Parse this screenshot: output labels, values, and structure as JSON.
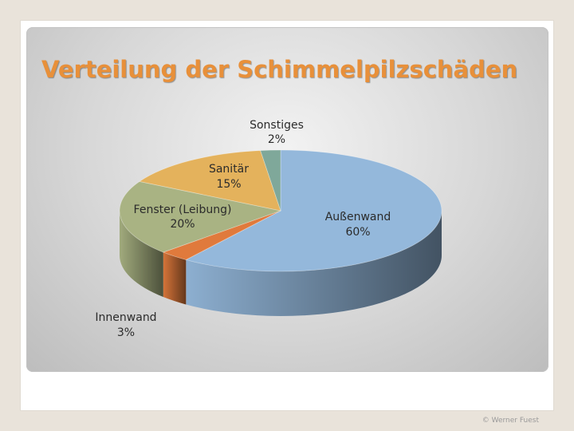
{
  "slide": {
    "title": "Verteilung der Schimmelpilzschäden",
    "copyright": "© Werner Fuest"
  },
  "chart_data": {
    "type": "pie",
    "style": "3d",
    "title": "Verteilung der Schimmelpilzschäden",
    "slices": [
      {
        "label": "Außenwand",
        "percent_label": "60%",
        "value": 60,
        "color": "#94b8db"
      },
      {
        "label": "Innenwand",
        "percent_label": "3%",
        "value": 3,
        "color": "#e07a3c"
      },
      {
        "label": "Fenster (Leibung)",
        "percent_label": "20%",
        "value": 20,
        "color": "#a9b383"
      },
      {
        "label": "Sanitär",
        "percent_label": "15%",
        "value": 15,
        "color": "#e4b25c"
      },
      {
        "label": "Sonstiges",
        "percent_label": "2%",
        "value": 2,
        "color": "#7fa89a"
      }
    ]
  }
}
